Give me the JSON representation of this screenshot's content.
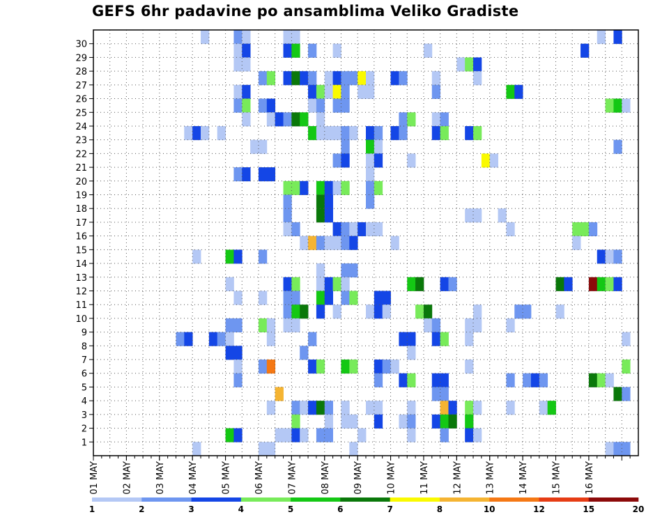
{
  "chart_data": {
    "type": "heatmap",
    "title": "GEFS 6hr padavine po ansamblima Veliko Gradiste",
    "xlabel": "",
    "ylabel": "",
    "y_ticks": [
      1,
      2,
      3,
      4,
      5,
      6,
      7,
      8,
      9,
      10,
      11,
      12,
      13,
      14,
      15,
      16,
      17,
      18,
      19,
      20,
      21,
      22,
      23,
      24,
      25,
      26,
      27,
      28,
      29,
      30
    ],
    "x_ticks": [
      "01 MAY",
      "02 MAY",
      "03 MAY",
      "04 MAY",
      "05 MAY",
      "06 MAY",
      "07 MAY",
      "08 MAY",
      "09 MAY",
      "10 MAY",
      "11 MAY",
      "12 MAY",
      "13 MAY",
      "14 MAY",
      "15 MAY",
      "16 MAY"
    ],
    "x_step": "6hr",
    "grid": true,
    "colorbar": {
      "placement": "bottom",
      "labels": [
        "1",
        "2",
        "3",
        "4",
        "5",
        "6",
        "7",
        "8",
        "10",
        "12",
        "15",
        "20"
      ],
      "colors": [
        "#b4c8f5",
        "#6e96f0",
        "#1446e6",
        "#78eb5a",
        "#14c814",
        "#0a780a",
        "#fafa00",
        "#f5b432",
        "#f57814",
        "#e63c14",
        "#8c0a0a"
      ]
    },
    "cells": [
      [
        30,
        13,
        1
      ],
      [
        30,
        17,
        2
      ],
      [
        30,
        18,
        1
      ],
      [
        30,
        23,
        1
      ],
      [
        30,
        24,
        1
      ],
      [
        30,
        61,
        1
      ],
      [
        30,
        63,
        3
      ],
      [
        29,
        17,
        1
      ],
      [
        29,
        18,
        3
      ],
      [
        29,
        23,
        3
      ],
      [
        29,
        24,
        5
      ],
      [
        29,
        26,
        2
      ],
      [
        29,
        29,
        1
      ],
      [
        29,
        40,
        1
      ],
      [
        29,
        59,
        3
      ],
      [
        28,
        17,
        1
      ],
      [
        28,
        18,
        1
      ],
      [
        28,
        44,
        1
      ],
      [
        28,
        45,
        4
      ],
      [
        28,
        46,
        3
      ],
      [
        27,
        20,
        2
      ],
      [
        27,
        21,
        4
      ],
      [
        27,
        23,
        3
      ],
      [
        27,
        24,
        6
      ],
      [
        27,
        25,
        3
      ],
      [
        27,
        26,
        2
      ],
      [
        27,
        28,
        1
      ],
      [
        27,
        29,
        3
      ],
      [
        27,
        30,
        2
      ],
      [
        27,
        31,
        2
      ],
      [
        27,
        32,
        7
      ],
      [
        27,
        33,
        1
      ],
      [
        27,
        36,
        3
      ],
      [
        27,
        37,
        2
      ],
      [
        27,
        41,
        1
      ],
      [
        27,
        46,
        1
      ],
      [
        26,
        17,
        1
      ],
      [
        26,
        18,
        3
      ],
      [
        26,
        26,
        3
      ],
      [
        26,
        27,
        4
      ],
      [
        26,
        28,
        1
      ],
      [
        26,
        29,
        7
      ],
      [
        26,
        30,
        2
      ],
      [
        26,
        32,
        1
      ],
      [
        26,
        33,
        1
      ],
      [
        26,
        41,
        2
      ],
      [
        26,
        50,
        5
      ],
      [
        26,
        51,
        3
      ],
      [
        25,
        17,
        2
      ],
      [
        25,
        18,
        4
      ],
      [
        25,
        20,
        2
      ],
      [
        25,
        21,
        3
      ],
      [
        25,
        26,
        1
      ],
      [
        25,
        27,
        2
      ],
      [
        25,
        29,
        2
      ],
      [
        25,
        30,
        2
      ],
      [
        25,
        62,
        4
      ],
      [
        25,
        63,
        5
      ],
      [
        25,
        64,
        1
      ],
      [
        24,
        18,
        1
      ],
      [
        24,
        21,
        1
      ],
      [
        24,
        22,
        3
      ],
      [
        24,
        23,
        2
      ],
      [
        24,
        24,
        6
      ],
      [
        24,
        25,
        5
      ],
      [
        24,
        27,
        1
      ],
      [
        24,
        37,
        2
      ],
      [
        24,
        38,
        4
      ],
      [
        24,
        41,
        1
      ],
      [
        24,
        42,
        2
      ],
      [
        23,
        11,
        1
      ],
      [
        23,
        12,
        3
      ],
      [
        23,
        13,
        1
      ],
      [
        23,
        15,
        1
      ],
      [
        23,
        26,
        5
      ],
      [
        23,
        27,
        1
      ],
      [
        23,
        28,
        1
      ],
      [
        23,
        29,
        1
      ],
      [
        23,
        30,
        2
      ],
      [
        23,
        31,
        1
      ],
      [
        23,
        33,
        3
      ],
      [
        23,
        34,
        2
      ],
      [
        23,
        36,
        3
      ],
      [
        23,
        37,
        2
      ],
      [
        23,
        41,
        3
      ],
      [
        23,
        42,
        4
      ],
      [
        23,
        45,
        3
      ],
      [
        23,
        46,
        4
      ],
      [
        22,
        19,
        1
      ],
      [
        22,
        20,
        1
      ],
      [
        22,
        30,
        2
      ],
      [
        22,
        33,
        5
      ],
      [
        22,
        34,
        1
      ],
      [
        22,
        63,
        2
      ],
      [
        21,
        29,
        2
      ],
      [
        21,
        30,
        3
      ],
      [
        21,
        33,
        1
      ],
      [
        21,
        34,
        3
      ],
      [
        21,
        38,
        1
      ],
      [
        21,
        47,
        7
      ],
      [
        21,
        48,
        1
      ],
      [
        20,
        17,
        2
      ],
      [
        20,
        18,
        3
      ],
      [
        20,
        20,
        3
      ],
      [
        20,
        21,
        3
      ],
      [
        20,
        33,
        1
      ],
      [
        19,
        23,
        4
      ],
      [
        19,
        24,
        4
      ],
      [
        19,
        25,
        3
      ],
      [
        19,
        27,
        5
      ],
      [
        19,
        28,
        3
      ],
      [
        19,
        29,
        1
      ],
      [
        19,
        30,
        4
      ],
      [
        19,
        33,
        2
      ],
      [
        19,
        34,
        4
      ],
      [
        18,
        23,
        2
      ],
      [
        18,
        27,
        6
      ],
      [
        18,
        28,
        3
      ],
      [
        18,
        33,
        2
      ],
      [
        17,
        23,
        2
      ],
      [
        17,
        27,
        6
      ],
      [
        17,
        28,
        3
      ],
      [
        17,
        45,
        1
      ],
      [
        17,
        46,
        1
      ],
      [
        17,
        49,
        1
      ],
      [
        16,
        23,
        1
      ],
      [
        16,
        24,
        2
      ],
      [
        16,
        29,
        3
      ],
      [
        16,
        30,
        2
      ],
      [
        16,
        31,
        1
      ],
      [
        16,
        32,
        3
      ],
      [
        16,
        33,
        1
      ],
      [
        16,
        34,
        1
      ],
      [
        16,
        50,
        1
      ],
      [
        16,
        58,
        4
      ],
      [
        16,
        59,
        4
      ],
      [
        16,
        60,
        2
      ],
      [
        15,
        25,
        1
      ],
      [
        15,
        26,
        8
      ],
      [
        15,
        27,
        2
      ],
      [
        15,
        28,
        1
      ],
      [
        15,
        29,
        1
      ],
      [
        15,
        30,
        2
      ],
      [
        15,
        31,
        3
      ],
      [
        15,
        36,
        1
      ],
      [
        15,
        58,
        1
      ],
      [
        14,
        12,
        1
      ],
      [
        14,
        16,
        5
      ],
      [
        14,
        17,
        3
      ],
      [
        14,
        20,
        2
      ],
      [
        14,
        61,
        3
      ],
      [
        14,
        62,
        1
      ],
      [
        14,
        63,
        2
      ],
      [
        13,
        27,
        1
      ],
      [
        13,
        30,
        2
      ],
      [
        13,
        31,
        2
      ],
      [
        12,
        16,
        1
      ],
      [
        12,
        23,
        3
      ],
      [
        12,
        24,
        4
      ],
      [
        12,
        27,
        1
      ],
      [
        12,
        28,
        3
      ],
      [
        12,
        29,
        4
      ],
      [
        12,
        30,
        1
      ],
      [
        12,
        38,
        5
      ],
      [
        12,
        39,
        6
      ],
      [
        12,
        42,
        3
      ],
      [
        12,
        43,
        2
      ],
      [
        12,
        56,
        6
      ],
      [
        12,
        57,
        3
      ],
      [
        12,
        60,
        11
      ],
      [
        12,
        61,
        5
      ],
      [
        12,
        62,
        4
      ],
      [
        12,
        63,
        3
      ],
      [
        11,
        17,
        1
      ],
      [
        11,
        20,
        1
      ],
      [
        11,
        23,
        2
      ],
      [
        11,
        24,
        2
      ],
      [
        11,
        27,
        5
      ],
      [
        11,
        28,
        3
      ],
      [
        11,
        30,
        2
      ],
      [
        11,
        31,
        4
      ],
      [
        11,
        34,
        3
      ],
      [
        11,
        35,
        3
      ],
      [
        10,
        23,
        2
      ],
      [
        10,
        24,
        5
      ],
      [
        10,
        25,
        6
      ],
      [
        10,
        27,
        3
      ],
      [
        10,
        29,
        1
      ],
      [
        10,
        33,
        1
      ],
      [
        10,
        34,
        3
      ],
      [
        10,
        35,
        1
      ],
      [
        10,
        39,
        4
      ],
      [
        10,
        40,
        6
      ],
      [
        10,
        46,
        1
      ],
      [
        10,
        51,
        2
      ],
      [
        10,
        52,
        2
      ],
      [
        10,
        56,
        1
      ],
      [
        9,
        16,
        2
      ],
      [
        9,
        17,
        2
      ],
      [
        9,
        20,
        4
      ],
      [
        9,
        21,
        1
      ],
      [
        9,
        23,
        1
      ],
      [
        9,
        24,
        1
      ],
      [
        9,
        40,
        1
      ],
      [
        9,
        41,
        2
      ],
      [
        9,
        45,
        1
      ],
      [
        9,
        46,
        1
      ],
      [
        9,
        50,
        1
      ],
      [
        8,
        10,
        2
      ],
      [
        8,
        11,
        3
      ],
      [
        8,
        14,
        3
      ],
      [
        8,
        15,
        2
      ],
      [
        8,
        16,
        1
      ],
      [
        8,
        21,
        1
      ],
      [
        8,
        26,
        2
      ],
      [
        8,
        37,
        3
      ],
      [
        8,
        38,
        3
      ],
      [
        8,
        41,
        3
      ],
      [
        8,
        42,
        4
      ],
      [
        8,
        45,
        1
      ],
      [
        8,
        64,
        1
      ],
      [
        7,
        16,
        3
      ],
      [
        7,
        17,
        3
      ],
      [
        7,
        25,
        2
      ],
      [
        7,
        38,
        1
      ],
      [
        6,
        17,
        1
      ],
      [
        6,
        20,
        2
      ],
      [
        6,
        21,
        9
      ],
      [
        6,
        26,
        3
      ],
      [
        6,
        27,
        4
      ],
      [
        6,
        30,
        5
      ],
      [
        6,
        31,
        4
      ],
      [
        6,
        34,
        3
      ],
      [
        6,
        35,
        2
      ],
      [
        6,
        36,
        1
      ],
      [
        6,
        45,
        1
      ],
      [
        6,
        64,
        4
      ],
      [
        5,
        17,
        2
      ],
      [
        5,
        34,
        2
      ],
      [
        5,
        37,
        3
      ],
      [
        5,
        38,
        4
      ],
      [
        5,
        41,
        3
      ],
      [
        5,
        42,
        3
      ],
      [
        5,
        50,
        2
      ],
      [
        5,
        52,
        2
      ],
      [
        5,
        53,
        3
      ],
      [
        5,
        54,
        2
      ],
      [
        5,
        60,
        6
      ],
      [
        5,
        61,
        4
      ],
      [
        5,
        62,
        1
      ],
      [
        4,
        22,
        8
      ],
      [
        4,
        41,
        2
      ],
      [
        4,
        42,
        2
      ],
      [
        4,
        63,
        6
      ],
      [
        4,
        64,
        2
      ],
      [
        3,
        21,
        1
      ],
      [
        3,
        24,
        2
      ],
      [
        3,
        25,
        1
      ],
      [
        3,
        26,
        3
      ],
      [
        3,
        27,
        6
      ],
      [
        3,
        28,
        2
      ],
      [
        3,
        30,
        1
      ],
      [
        3,
        33,
        1
      ],
      [
        3,
        34,
        1
      ],
      [
        3,
        38,
        1
      ],
      [
        3,
        42,
        8
      ],
      [
        3,
        43,
        3
      ],
      [
        3,
        45,
        4
      ],
      [
        3,
        46,
        1
      ],
      [
        3,
        50,
        1
      ],
      [
        3,
        54,
        1
      ],
      [
        3,
        55,
        5
      ],
      [
        2,
        24,
        4
      ],
      [
        2,
        28,
        1
      ],
      [
        2,
        30,
        1
      ],
      [
        2,
        31,
        1
      ],
      [
        2,
        34,
        3
      ],
      [
        2,
        37,
        1
      ],
      [
        2,
        38,
        2
      ],
      [
        2,
        41,
        3
      ],
      [
        2,
        42,
        5
      ],
      [
        2,
        43,
        6
      ],
      [
        2,
        45,
        5
      ],
      [
        1,
        16,
        5
      ],
      [
        1,
        17,
        3
      ],
      [
        1,
        22,
        1
      ],
      [
        1,
        23,
        1
      ],
      [
        1,
        24,
        3
      ],
      [
        1,
        25,
        1
      ],
      [
        1,
        27,
        2
      ],
      [
        1,
        28,
        2
      ],
      [
        1,
        32,
        1
      ],
      [
        1,
        38,
        1
      ],
      [
        1,
        42,
        2
      ],
      [
        1,
        45,
        3
      ],
      [
        1,
        46,
        1
      ],
      [
        0,
        12,
        1
      ],
      [
        0,
        20,
        1
      ],
      [
        0,
        21,
        1
      ],
      [
        0,
        31,
        1
      ],
      [
        0,
        62,
        1
      ],
      [
        0,
        63,
        2
      ],
      [
        0,
        64,
        2
      ]
    ]
  }
}
